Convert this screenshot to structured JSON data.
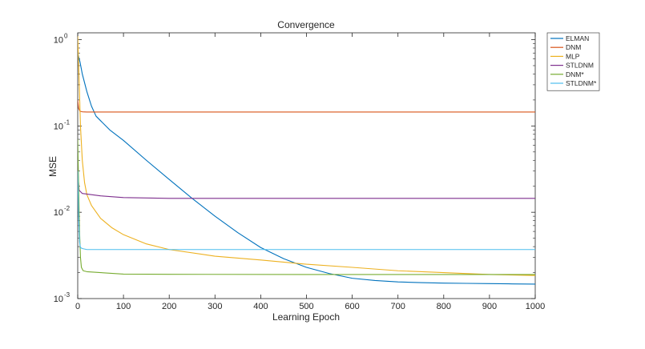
{
  "chart_data": {
    "type": "line",
    "title": "Convergence",
    "xlabel": "Learning Epoch",
    "ylabel": "MSE",
    "xlim": [
      0,
      1000
    ],
    "ylim": [
      0.001,
      1.2
    ],
    "yscale": "log",
    "xticks": [
      0,
      100,
      200,
      300,
      400,
      500,
      600,
      700,
      800,
      900,
      1000
    ],
    "yticks": [
      {
        "value": 0.001,
        "base": "10",
        "exp": "-3"
      },
      {
        "value": 0.01,
        "base": "10",
        "exp": "-2"
      },
      {
        "value": 0.1,
        "base": "10",
        "exp": "-1"
      },
      {
        "value": 1,
        "base": "10",
        "exp": "0"
      }
    ],
    "grid": false,
    "legend_position": "outside-top-right",
    "series": [
      {
        "name": "ELMAN",
        "color": "#0072BD",
        "x": [
          0,
          5,
          10,
          20,
          30,
          40,
          50,
          70,
          100,
          150,
          200,
          250,
          300,
          350,
          400,
          450,
          500,
          550,
          600,
          650,
          700,
          750,
          800,
          850,
          900,
          950,
          1000
        ],
        "y": [
          0.7,
          0.55,
          0.4,
          0.25,
          0.17,
          0.13,
          0.115,
          0.09,
          0.068,
          0.04,
          0.024,
          0.0145,
          0.009,
          0.0058,
          0.0039,
          0.0029,
          0.0023,
          0.00195,
          0.00172,
          0.00162,
          0.00156,
          0.00153,
          0.00151,
          0.0015,
          0.00149,
          0.00148,
          0.00147
        ]
      },
      {
        "name": "DNM",
        "color": "#D95319",
        "x": [
          0,
          2,
          5,
          10,
          20,
          50,
          100,
          1000
        ],
        "y": [
          0.2,
          0.16,
          0.148,
          0.146,
          0.145,
          0.145,
          0.145,
          0.145
        ]
      },
      {
        "name": "MLP",
        "color": "#EDB120",
        "x": [
          0,
          3,
          6,
          10,
          15,
          20,
          30,
          50,
          75,
          100,
          150,
          200,
          300,
          400,
          500,
          600,
          700,
          800,
          900,
          1000
        ],
        "y": [
          1.1,
          0.35,
          0.1,
          0.04,
          0.022,
          0.016,
          0.012,
          0.0085,
          0.0066,
          0.0055,
          0.0043,
          0.0037,
          0.0031,
          0.0028,
          0.0025,
          0.0023,
          0.0021,
          0.002,
          0.0019,
          0.00185
        ]
      },
      {
        "name": "STLDNM",
        "color": "#7E2F8E",
        "x": [
          0,
          3,
          10,
          50,
          100,
          200,
          300,
          500,
          1000
        ],
        "y": [
          0.03,
          0.018,
          0.0165,
          0.0155,
          0.0148,
          0.0145,
          0.0145,
          0.0145,
          0.0145
        ]
      },
      {
        "name": "DNM*",
        "color": "#77AC30",
        "x": [
          0,
          2,
          4,
          6,
          8,
          12,
          20,
          50,
          100,
          200,
          500,
          1000
        ],
        "y": [
          0.07,
          0.02,
          0.006,
          0.003,
          0.0023,
          0.0021,
          0.00205,
          0.002,
          0.00192,
          0.00191,
          0.0019,
          0.0019
        ]
      },
      {
        "name": "STLDNM*",
        "color": "#4DBEEE",
        "x": [
          0,
          2,
          4,
          6,
          10,
          20,
          50,
          100,
          300,
          600,
          1000
        ],
        "y": [
          0.03,
          0.009,
          0.0045,
          0.0039,
          0.0038,
          0.0037,
          0.0037,
          0.0037,
          0.0037,
          0.0037,
          0.0037
        ]
      }
    ]
  }
}
